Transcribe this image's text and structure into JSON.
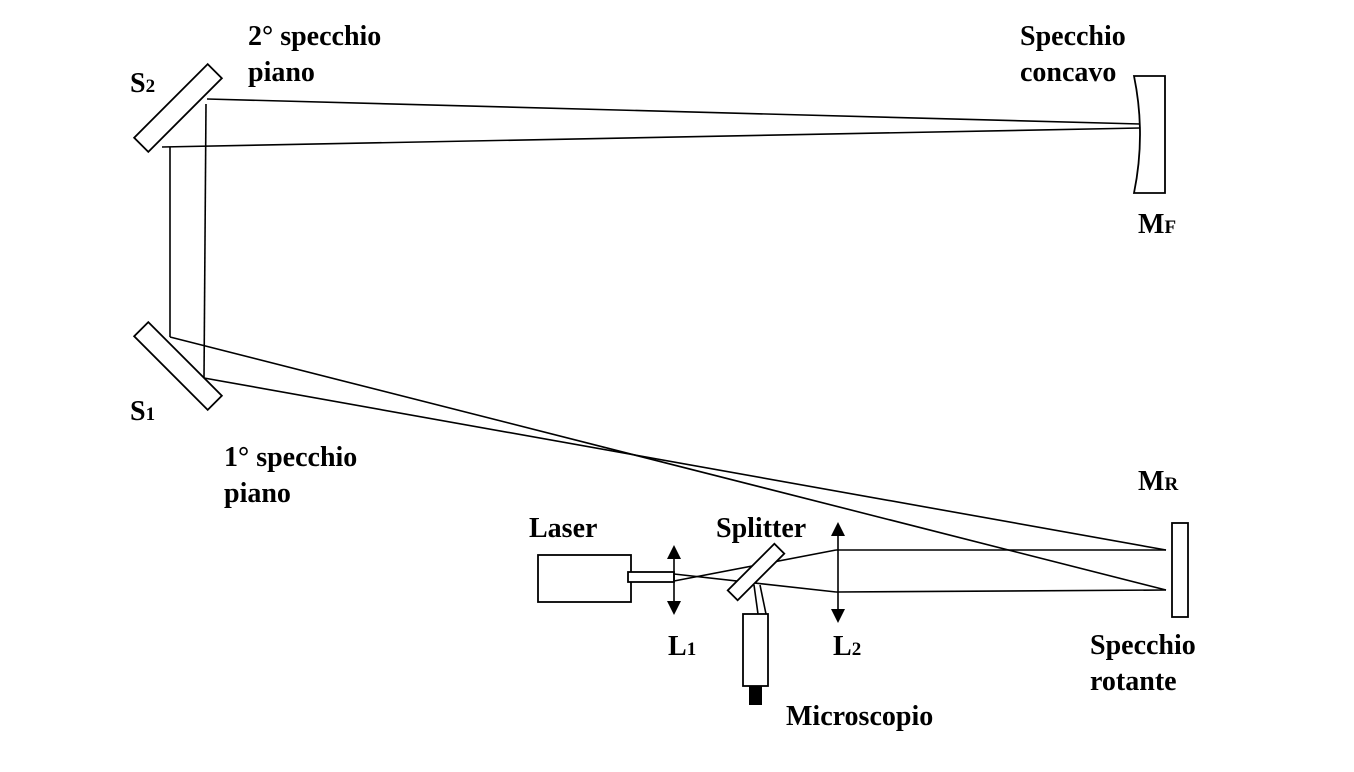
{
  "labels": {
    "s2_letter": "S",
    "s2_sub": "2",
    "s2_name_line1": "2° specchio",
    "s2_name_line2": "piano",
    "s1_letter": "S",
    "s1_sub": "1",
    "s1_name_line1": "1° specchio",
    "s1_name_line2": "piano",
    "concave_line1": "Specchio",
    "concave_line2": "concavo",
    "mf_letter": "M",
    "mf_sub": "F",
    "mr_letter": "M",
    "mr_sub": "R",
    "rotating_line1": "Specchio",
    "rotating_line2": "rotante",
    "laser": "Laser",
    "splitter": "Splitter",
    "l1_letter": "L",
    "l1_sub": "1",
    "l2_letter": "L",
    "l2_sub": "2",
    "microscope": "Microscopio"
  }
}
